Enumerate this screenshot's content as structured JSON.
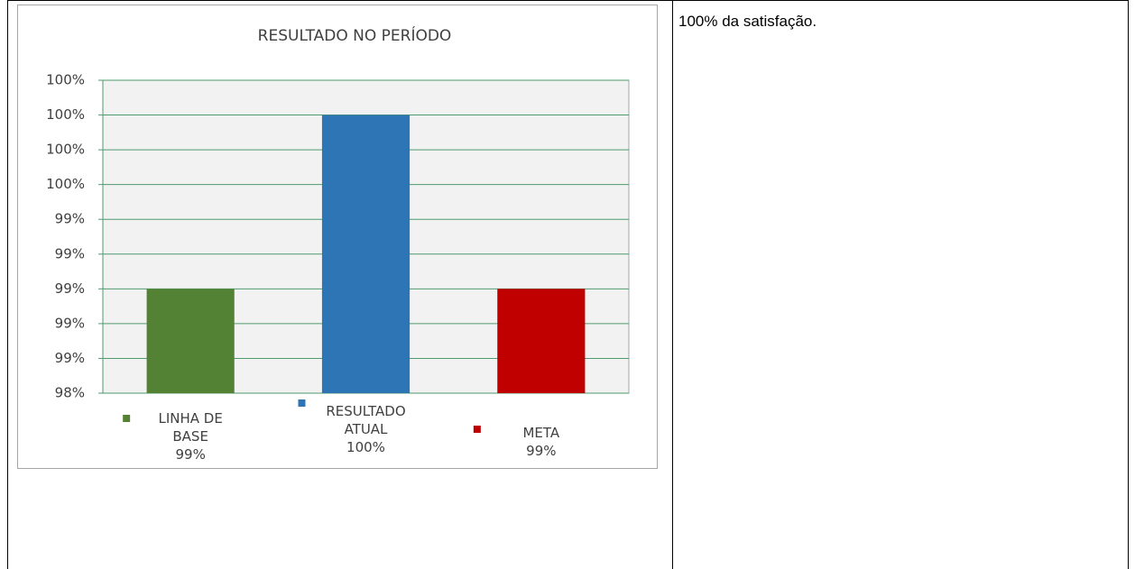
{
  "note_text": "100% da satisfação.",
  "chart_data": {
    "type": "bar",
    "title": "RESULTADO NO PERÍODO",
    "categories": [
      "LINHA DE BASE",
      "RESULTADO ATUAL",
      "META"
    ],
    "values": [
      99,
      100,
      99
    ],
    "value_labels": [
      "99%",
      "100%",
      "99%"
    ],
    "colors": [
      "#548235",
      "#2e75b6",
      "#c00000"
    ],
    "ylim": [
      98.4,
      100.2
    ],
    "yticks": [
      {
        "value": 98.4,
        "label": "98%"
      },
      {
        "value": 98.6,
        "label": "99%"
      },
      {
        "value": 98.8,
        "label": "99%"
      },
      {
        "value": 99.0,
        "label": "99%"
      },
      {
        "value": 99.2,
        "label": "99%"
      },
      {
        "value": 99.4,
        "label": "99%"
      },
      {
        "value": 99.6,
        "label": "100%"
      },
      {
        "value": 99.8,
        "label": "100%"
      },
      {
        "value": 100.0,
        "label": "100%"
      },
      {
        "value": 100.2,
        "label": "100%"
      }
    ],
    "grid": true
  }
}
